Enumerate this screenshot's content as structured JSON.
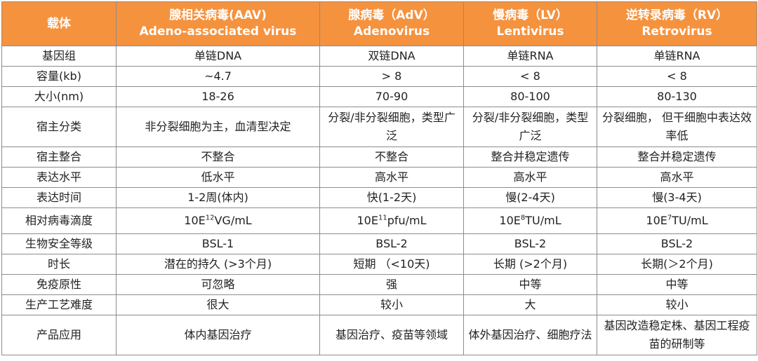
{
  "table": {
    "header": [
      {
        "lines": [
          "载体"
        ]
      },
      {
        "lines": [
          "腺相关病毒(AAV)",
          "Adeno-associated virus"
        ]
      },
      {
        "lines": [
          "腺病毒（AdV）",
          "Adenovirus"
        ]
      },
      {
        "lines": [
          "慢病毒（LV）",
          "Lentivirus"
        ]
      },
      {
        "lines": [
          "逆转录病毒（RV）",
          "Retrovirus"
        ]
      }
    ],
    "rows": [
      [
        "基因组",
        "单链DNA",
        "双链DNA",
        "单链RNA",
        "单链RNA"
      ],
      [
        "容量(kb)",
        "~4.7",
        "> 8",
        "< 8",
        "< 8"
      ],
      [
        "大小(nm)",
        "18-26",
        "70-90",
        "80-100",
        "80-130"
      ],
      [
        "宿主分类",
        "非分裂细胞为主，血清型决定",
        "分裂/非分裂细胞，类型广泛",
        "分裂/非分裂细胞，类型广泛",
        "分裂细胞， 但干细胞中表达效率低"
      ],
      [
        "宿主整合",
        "不整合",
        "不整合",
        "整合并稳定遗传",
        "整合并稳定遗传"
      ],
      [
        "表达水平",
        "低水平",
        "高水平",
        "高水平",
        "高水平"
      ],
      [
        "表达时间",
        "1-2周(体内)",
        "快(1-2天)",
        "慢(2-4天)",
        "慢(3-4天)"
      ],
      [
        "相对病毒滴度",
        {
          "base": "10E",
          "sup": "12",
          "unit": "VG/mL"
        },
        {
          "base": "10E",
          "sup": "11",
          "unit": "pfu/mL"
        },
        {
          "base": "10E",
          "sup": "8",
          "unit": "TU/mL"
        },
        {
          "base": "10E",
          "sup": "7",
          "unit": "TU/mL"
        }
      ],
      [
        "生物安全等级",
        "BSL-1",
        "BSL-2",
        "BSL-2",
        "BSL-2"
      ],
      [
        "时长",
        "潜在的持久 (>3个月)",
        "短期 （<10天)",
        "长期 (>2个月)",
        "长期(＞2个月)"
      ],
      [
        "免疫原性",
        "可忽略",
        "强",
        "中等",
        "中等"
      ],
      [
        "生产工艺难度",
        "很大",
        "较小",
        "大",
        "较小"
      ],
      [
        "产品应用",
        "体内基因治疗",
        "基因治疗、疫苗等领域",
        "体外基因治疗、细胞疗法",
        "基因改造稳定株、基因工程疫苗的研制等"
      ]
    ]
  }
}
